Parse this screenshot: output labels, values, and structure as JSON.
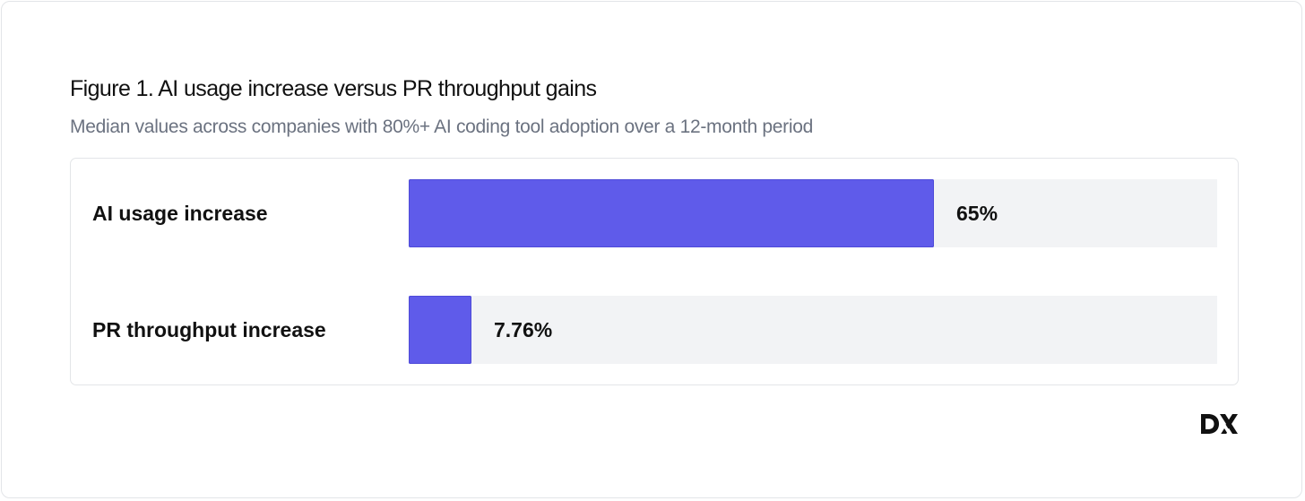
{
  "figure": {
    "title": "Figure 1. AI usage increase versus PR throughput gains",
    "subtitle": "Median values across companies with 80%+ AI coding tool adoption over a 12-month period"
  },
  "colors": {
    "bar": "#5f5bea",
    "track": "#f2f3f5",
    "text": "#111111",
    "subtitle": "#6b7280"
  },
  "logo": {
    "text": "DX",
    "icon": "dx-logo"
  },
  "chart_data": {
    "type": "bar",
    "orientation": "horizontal",
    "title": "Figure 1. AI usage increase versus PR throughput gains",
    "subtitle": "Median values across companies with 80%+ AI coding tool adoption over a 12-month period",
    "categories": [
      "AI usage increase",
      "PR throughput increase"
    ],
    "values": [
      65,
      7.76
    ],
    "value_labels": [
      "65%",
      "7.76%"
    ],
    "unit": "%",
    "xlim": [
      0,
      100
    ],
    "grid": false,
    "legend": "none"
  }
}
